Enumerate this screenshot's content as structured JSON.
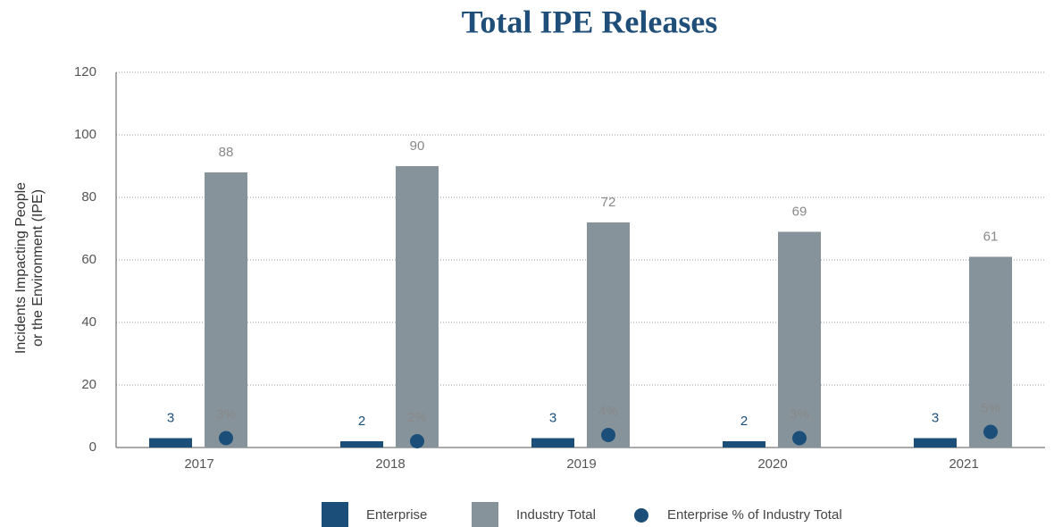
{
  "chart_data": {
    "type": "bar",
    "title": "Total IPE Releases",
    "ylabel": [
      "Incidents Impacting People",
      "or the Environment (IPE)"
    ],
    "categories": [
      "2017",
      "2018",
      "2019",
      "2020",
      "2021"
    ],
    "series": [
      {
        "name": "Enterprise",
        "color": "#1b4f7a",
        "values": [
          3,
          2,
          3,
          2,
          3
        ]
      },
      {
        "name": "Industry Total",
        "color": "#87939b",
        "values": [
          88,
          90,
          72,
          69,
          61
        ]
      },
      {
        "name": "Enterprise % of Industry Total",
        "type": "scatter",
        "color": "#1b4f7a",
        "values": [
          3,
          2,
          4,
          3,
          5
        ],
        "value_labels": [
          "3%",
          "2%",
          "4%",
          "3%",
          "5%"
        ]
      }
    ],
    "ylim": [
      0,
      120
    ],
    "yticks": [
      0,
      20,
      40,
      60,
      80,
      100,
      120
    ],
    "grid": true,
    "legend": "bottom"
  }
}
